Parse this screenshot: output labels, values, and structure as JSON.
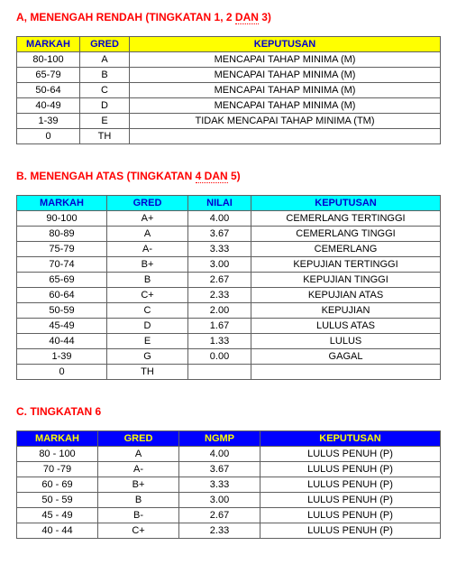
{
  "sections": {
    "a": {
      "title_html": "A, MENENGAH RENDAH (TINGKATAN 1, 2 <span class=\"dotted\">DAN</span>  3)",
      "title_color": "#ff0000",
      "headers": [
        "MARKAH",
        "GRED",
        "KEPUTUSAN"
      ],
      "header_bg": "#ffff00",
      "header_color": "#0000d0",
      "rows": [
        [
          "80-100",
          "A",
          "MENCAPAI TAHAP MINIMA (M)"
        ],
        [
          "65-79",
          "B",
          "MENCAPAI TAHAP MINIMA (M)"
        ],
        [
          "50-64",
          "C",
          "MENCAPAI TAHAP MINIMA (M)"
        ],
        [
          "40-49",
          "D",
          "MENCAPAI TAHAP MINIMA (M)"
        ],
        [
          "1-39",
          "E",
          "TIDAK MENCAPAI TAHAP MINIMA (TM)"
        ],
        [
          "0",
          "TH",
          ""
        ]
      ]
    },
    "b": {
      "title_html": "B. MENENGAH ATAS (TINGKATAN <span class=\"dotted\">4  DAN</span>  5)",
      "title_color": "#ff0000",
      "headers": [
        "MARKAH",
        "GRED",
        "NILAI",
        "KEPUTUSAN"
      ],
      "header_bg": "#00ffff",
      "header_color": "#0000d0",
      "rows": [
        [
          "90-100",
          "A+",
          "4.00",
          "CEMERLANG TERTINGGI"
        ],
        [
          "80-89",
          "A",
          "3.67",
          "CEMERLANG TINGGI"
        ],
        [
          "75-79",
          "A-",
          "3.33",
          "CEMERLANG"
        ],
        [
          "70-74",
          "B+",
          "3.00",
          "KEPUJIAN TERTINGGI"
        ],
        [
          "65-69",
          "B",
          "2.67",
          "KEPUJIAN TINGGI"
        ],
        [
          "60-64",
          "C+",
          "2.33",
          "KEPUJIAN ATAS"
        ],
        [
          "50-59",
          "C",
          "2.00",
          "KEPUJIAN"
        ],
        [
          "45-49",
          "D",
          "1.67",
          "LULUS ATAS"
        ],
        [
          "40-44",
          "E",
          "1.33",
          "LULUS"
        ],
        [
          "1-39",
          "G",
          "0.00",
          "GAGAL"
        ],
        [
          "0",
          "TH",
          "",
          ""
        ]
      ]
    },
    "c": {
      "title_html": "C. TINGKATAN 6",
      "title_color": "#ff0000",
      "headers": [
        "MARKAH",
        "GRED",
        "NGMP",
        "KEPUTUSAN"
      ],
      "header_bg": "#0000ff",
      "header_color": "#ffff00",
      "rows": [
        [
          "80 - 100",
          "A",
          "4.00",
          "LULUS PENUH (P)"
        ],
        [
          "70  -79",
          "A-",
          "3.67",
          "LULUS PENUH (P)"
        ],
        [
          "60 - 69",
          "B+",
          "3.33",
          "LULUS PENUH (P)"
        ],
        [
          "50 - 59",
          "B",
          "3.00",
          "LULUS PENUH (P)"
        ],
        [
          "45 - 49",
          "B-",
          "2.67",
          "LULUS PENUH (P)"
        ],
        [
          "40 - 44",
          "C+",
          "2.33",
          "LULUS PENUH (P)"
        ]
      ]
    }
  }
}
